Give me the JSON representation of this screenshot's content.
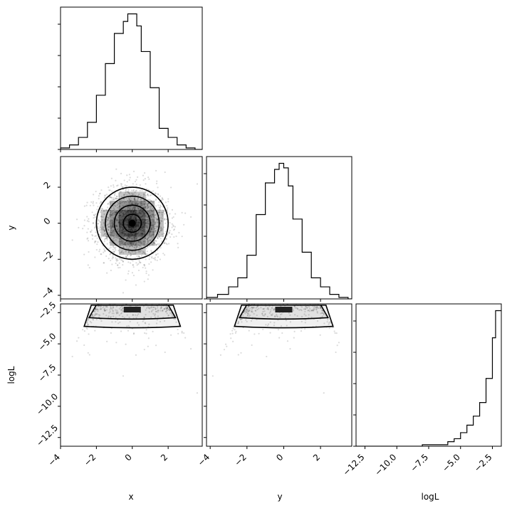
{
  "figure": {
    "type": "corner-plot",
    "parameters": [
      "x",
      "y",
      "logL"
    ]
  },
  "chart_data": [
    {
      "type": "histogram",
      "panel": "x-marginal",
      "xlabel": "",
      "xlim": [
        -4,
        3.9
      ],
      "bin_edges": [
        -4.0,
        -3.5,
        -3.0,
        -2.5,
        -2.0,
        -1.5,
        -1.0,
        -0.5,
        -0.25,
        0.0,
        0.25,
        0.5,
        1.0,
        1.5,
        2.0,
        2.5,
        3.0,
        3.5,
        3.9
      ],
      "values": [
        1,
        3,
        8,
        18,
        36,
        57,
        77,
        85,
        90,
        90,
        82,
        65,
        41,
        14,
        8,
        3,
        1,
        0
      ],
      "y_ticks_labeled": false
    },
    {
      "type": "histogram",
      "panel": "y-marginal",
      "xlabel": "",
      "xlim": [
        -4.2,
        3.7
      ],
      "bin_edges": [
        -4.2,
        -3.6,
        -3.0,
        -2.5,
        -2.0,
        -1.5,
        -1.0,
        -0.5,
        -0.25,
        0.0,
        0.25,
        0.5,
        1.0,
        1.5,
        2.0,
        2.5,
        3.0,
        3.5,
        3.7
      ],
      "values": [
        1,
        3,
        8,
        14,
        29,
        56,
        77,
        86,
        90,
        87,
        75,
        53,
        31,
        14,
        8,
        3,
        1,
        0
      ],
      "y_ticks_labeled": false
    },
    {
      "type": "histogram",
      "panel": "logL-marginal",
      "xlim": [
        -13.2,
        -1.8
      ],
      "bin_edges": [
        -13.2,
        -8.0,
        -7.0,
        -6.0,
        -5.5,
        -5.0,
        -4.5,
        -4.0,
        -3.5,
        -3.0,
        -2.5,
        -2.25,
        -2.0,
        -1.8
      ],
      "values": [
        0,
        1,
        1,
        3,
        5,
        9,
        14,
        20,
        29,
        45,
        72,
        90,
        90
      ],
      "y_ticks_labeled": false
    },
    {
      "type": "scatter-contour",
      "panel": "x-vs-y",
      "xlim": [
        -4,
        3.9
      ],
      "ylim": [
        -4.2,
        3.7
      ],
      "ylabel": "y",
      "center": [
        0,
        0
      ],
      "contour_radii": [
        2.0,
        1.5,
        1.0,
        0.5
      ],
      "distribution": "2d-gaussian, sigma 1"
    },
    {
      "type": "scatter-contour",
      "panel": "x-vs-logL",
      "xlim": [
        -4,
        3.9
      ],
      "ylim": [
        -13.2,
        -1.8
      ],
      "xlabel": "x",
      "ylabel": "logL",
      "relation": "logL = -(x^2 + y^2)/2"
    },
    {
      "type": "scatter-contour",
      "panel": "y-vs-logL",
      "xlim": [
        -4.2,
        3.7
      ],
      "ylim": [
        -13.2,
        -1.8
      ],
      "xlabel": "y",
      "relation": "logL = -(x^2 + y^2)/2"
    }
  ],
  "axes": {
    "x_tick_labels": [
      "−4",
      "−2",
      "0",
      "2"
    ],
    "y_tick_labels": [
      "−4",
      "−2",
      "0",
      "2"
    ],
    "logL_tick_labels": [
      "−12.5",
      "−10.0",
      "−7.5",
      "−5.0",
      "−2.5"
    ],
    "x_label": "x",
    "y_label": "y",
    "logL_label": "logL"
  }
}
